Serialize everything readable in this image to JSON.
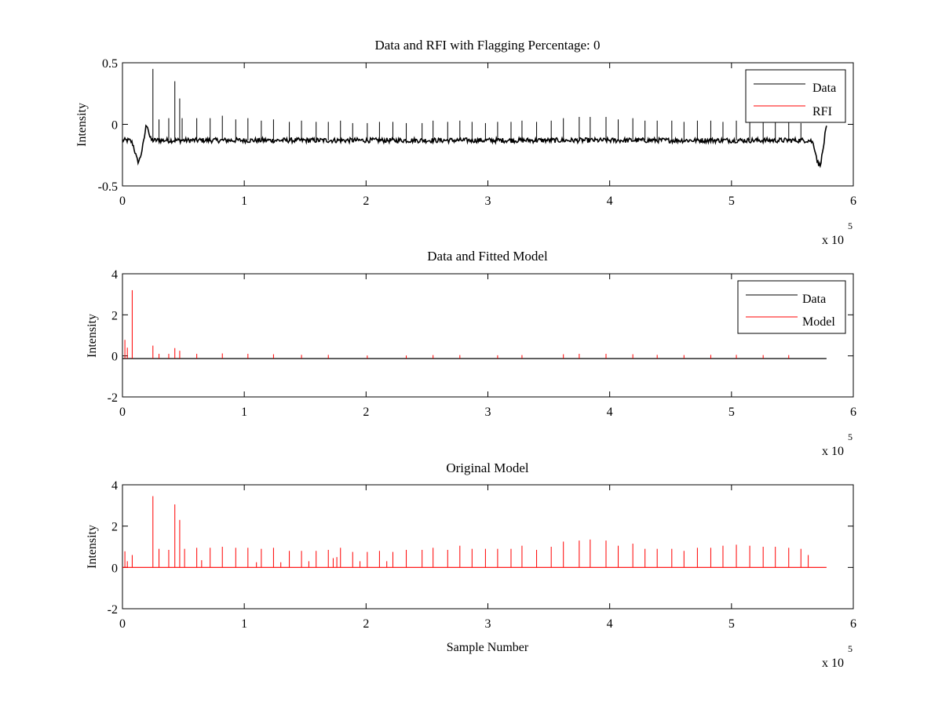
{
  "chart_data": [
    {
      "type": "line",
      "title": "Data and RFI with Flagging Percentage: 0",
      "xlabel": "",
      "ylabel": "Intensity",
      "xlim": [
        0,
        6
      ],
      "ylim": [
        -0.5,
        0.5
      ],
      "x_ticks": [
        "0",
        "1",
        "2",
        "3",
        "4",
        "5",
        "6"
      ],
      "y_ticks": [
        "-0.5",
        "0",
        "0.5"
      ],
      "x_multiplier": "x 10",
      "x_multiplier_exp": "5",
      "legend": "top-right",
      "grid": false,
      "series": [
        {
          "name": "Data",
          "color": "#000000",
          "baseline": -0.13,
          "noise": 0.02,
          "dips": [
            [
              0.13,
              -0.3
            ],
            [
              5.72,
              -0.33
            ]
          ],
          "bumps": [
            [
              0.2,
              0.0
            ],
            [
              5.78,
              -0.02
            ]
          ],
          "spikes": [
            [
              0.25,
              0.45
            ],
            [
              0.3,
              0.04
            ],
            [
              0.38,
              0.05
            ],
            [
              0.43,
              0.35
            ],
            [
              0.47,
              0.21
            ],
            [
              0.49,
              0.05
            ],
            [
              0.61,
              0.05
            ],
            [
              0.72,
              0.05
            ],
            [
              0.82,
              0.07
            ],
            [
              0.93,
              0.04
            ],
            [
              1.03,
              0.05
            ],
            [
              1.14,
              0.03
            ],
            [
              1.24,
              0.04
            ],
            [
              1.37,
              0.02
            ],
            [
              1.47,
              0.03
            ],
            [
              1.59,
              0.02
            ],
            [
              1.69,
              0.02
            ],
            [
              1.79,
              0.03
            ],
            [
              1.89,
              0.01
            ],
            [
              2.01,
              0.01
            ],
            [
              2.11,
              0.02
            ],
            [
              2.22,
              0.02
            ],
            [
              2.33,
              0.01
            ],
            [
              2.46,
              0.01
            ],
            [
              2.55,
              0.03
            ],
            [
              2.67,
              0.02
            ],
            [
              2.77,
              0.03
            ],
            [
              2.87,
              0.02
            ],
            [
              2.98,
              0.01
            ],
            [
              3.08,
              0.02
            ],
            [
              3.19,
              0.02
            ],
            [
              3.28,
              0.03
            ],
            [
              3.4,
              0.02
            ],
            [
              3.52,
              0.03
            ],
            [
              3.62,
              0.05
            ],
            [
              3.75,
              0.06
            ],
            [
              3.84,
              0.06
            ],
            [
              3.97,
              0.06
            ],
            [
              4.07,
              0.04
            ],
            [
              4.19,
              0.05
            ],
            [
              4.29,
              0.03
            ],
            [
              4.39,
              0.03
            ],
            [
              4.51,
              0.03
            ],
            [
              4.61,
              0.02
            ],
            [
              4.72,
              0.03
            ],
            [
              4.83,
              0.03
            ],
            [
              4.93,
              0.02
            ],
            [
              5.04,
              0.03
            ],
            [
              5.15,
              0.03
            ],
            [
              5.26,
              0.02
            ],
            [
              5.36,
              0.02
            ],
            [
              5.47,
              0.02
            ],
            [
              5.57,
              0.01
            ]
          ]
        },
        {
          "name": "RFI",
          "color": "#ff0000"
        }
      ]
    },
    {
      "type": "line",
      "title": "Data and Fitted Model",
      "xlabel": "",
      "ylabel": "Intensity",
      "xlim": [
        0,
        6
      ],
      "ylim": [
        -2,
        4
      ],
      "x_ticks": [
        "0",
        "1",
        "2",
        "3",
        "4",
        "5",
        "6"
      ],
      "y_ticks": [
        "-2",
        "0",
        "2",
        "4"
      ],
      "x_multiplier": "x 10",
      "x_multiplier_exp": "5",
      "legend": "top-right",
      "grid": false,
      "series": [
        {
          "name": "Data",
          "color": "#000000",
          "baseline": -0.13
        },
        {
          "name": "Model",
          "color": "#ff0000",
          "spikes": [
            [
              0.02,
              0.78
            ],
            [
              0.04,
              0.4
            ],
            [
              0.08,
              3.2
            ],
            [
              0.25,
              0.5
            ],
            [
              0.3,
              0.1
            ],
            [
              0.38,
              0.1
            ],
            [
              0.43,
              0.38
            ],
            [
              0.47,
              0.25
            ],
            [
              0.61,
              0.1
            ],
            [
              0.82,
              0.12
            ],
            [
              1.03,
              0.1
            ],
            [
              1.24,
              0.08
            ],
            [
              1.47,
              0.05
            ],
            [
              1.69,
              0.05
            ],
            [
              2.01,
              0.02
            ],
            [
              2.33,
              0.02
            ],
            [
              2.55,
              0.04
            ],
            [
              2.77,
              0.04
            ],
            [
              3.08,
              0.03
            ],
            [
              3.28,
              0.04
            ],
            [
              3.62,
              0.08
            ],
            [
              3.75,
              0.1
            ],
            [
              3.97,
              0.1
            ],
            [
              4.19,
              0.08
            ],
            [
              4.39,
              0.05
            ],
            [
              4.61,
              0.04
            ],
            [
              4.83,
              0.05
            ],
            [
              5.04,
              0.05
            ],
            [
              5.26,
              0.04
            ],
            [
              5.47,
              0.04
            ]
          ]
        }
      ]
    },
    {
      "type": "line",
      "title": "Original Model",
      "xlabel": "Sample Number",
      "ylabel": "Intensity",
      "xlim": [
        0,
        6
      ],
      "ylim": [
        -2,
        4
      ],
      "x_ticks": [
        "0",
        "1",
        "2",
        "3",
        "4",
        "5",
        "6"
      ],
      "y_ticks": [
        "-2",
        "0",
        "2",
        "4"
      ],
      "x_multiplier": "x 10",
      "x_multiplier_exp": "5",
      "legend": "none",
      "grid": false,
      "series": [
        {
          "name": "Model",
          "color": "#ff0000",
          "baseline": 0,
          "spikes": [
            [
              0.02,
              0.78
            ],
            [
              0.04,
              0.3
            ],
            [
              0.08,
              0.6
            ],
            [
              0.25,
              3.45
            ],
            [
              0.3,
              0.9
            ],
            [
              0.38,
              0.85
            ],
            [
              0.43,
              3.05
            ],
            [
              0.47,
              2.3
            ],
            [
              0.51,
              0.9
            ],
            [
              0.61,
              0.95
            ],
            [
              0.65,
              0.35
            ],
            [
              0.72,
              0.95
            ],
            [
              0.82,
              1.0
            ],
            [
              0.93,
              0.95
            ],
            [
              1.03,
              0.95
            ],
            [
              1.1,
              0.25
            ],
            [
              1.14,
              0.9
            ],
            [
              1.24,
              0.95
            ],
            [
              1.3,
              0.25
            ],
            [
              1.37,
              0.8
            ],
            [
              1.47,
              0.8
            ],
            [
              1.53,
              0.3
            ],
            [
              1.59,
              0.8
            ],
            [
              1.69,
              0.85
            ],
            [
              1.73,
              0.45
            ],
            [
              1.76,
              0.5
            ],
            [
              1.79,
              0.95
            ],
            [
              1.89,
              0.75
            ],
            [
              1.95,
              0.3
            ],
            [
              2.01,
              0.75
            ],
            [
              2.11,
              0.8
            ],
            [
              2.17,
              0.3
            ],
            [
              2.22,
              0.75
            ],
            [
              2.33,
              0.85
            ],
            [
              2.46,
              0.85
            ],
            [
              2.55,
              0.95
            ],
            [
              2.67,
              0.85
            ],
            [
              2.77,
              1.05
            ],
            [
              2.87,
              0.9
            ],
            [
              2.98,
              0.9
            ],
            [
              3.08,
              0.9
            ],
            [
              3.19,
              0.9
            ],
            [
              3.28,
              1.05
            ],
            [
              3.4,
              0.85
            ],
            [
              3.52,
              1.0
            ],
            [
              3.62,
              1.25
            ],
            [
              3.75,
              1.3
            ],
            [
              3.84,
              1.35
            ],
            [
              3.97,
              1.3
            ],
            [
              4.07,
              1.05
            ],
            [
              4.19,
              1.15
            ],
            [
              4.29,
              0.9
            ],
            [
              4.39,
              0.9
            ],
            [
              4.51,
              0.9
            ],
            [
              4.61,
              0.8
            ],
            [
              4.72,
              0.95
            ],
            [
              4.83,
              0.95
            ],
            [
              4.93,
              1.05
            ],
            [
              5.04,
              1.1
            ],
            [
              5.15,
              1.05
            ],
            [
              5.26,
              1.0
            ],
            [
              5.36,
              1.0
            ],
            [
              5.47,
              0.95
            ],
            [
              5.57,
              0.9
            ],
            [
              5.63,
              0.6
            ]
          ]
        }
      ]
    }
  ]
}
